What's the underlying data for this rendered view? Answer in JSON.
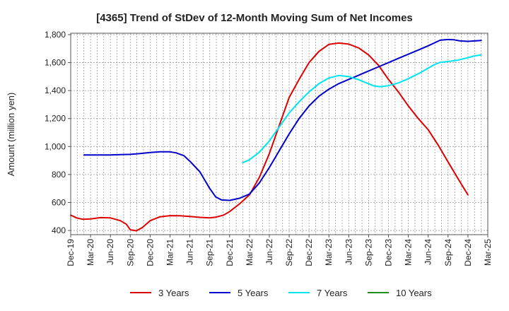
{
  "chart_data": {
    "type": "line",
    "title": "[4365]  Trend of StDev of 12-Month Moving Sum of Net Incomes",
    "xlabel": "",
    "ylabel": "Amount (million yen)",
    "ylim": [
      370,
      1810
    ],
    "yticks": [
      400,
      600,
      800,
      1000,
      1200,
      1400,
      1600,
      1800
    ],
    "ytick_labels": [
      "400",
      "600",
      "800",
      "1,000",
      "1,200",
      "1,400",
      "1,600",
      "1,800"
    ],
    "x_categories": [
      "Dec-19",
      "Mar-20",
      "Jun-20",
      "Sep-20",
      "Dec-20",
      "Mar-21",
      "Jun-21",
      "Sep-21",
      "Dec-21",
      "Mar-22",
      "Jun-22",
      "Sep-22",
      "Dec-22",
      "Mar-23",
      "Jun-23",
      "Sep-23",
      "Dec-23",
      "Mar-24",
      "Jun-24",
      "Sep-24",
      "Dec-24",
      "Mar-25"
    ],
    "grid": true,
    "legend_position": "bottom",
    "series": [
      {
        "name": "3 Years",
        "color": "#dd0000",
        "points": [
          [
            0,
            510
          ],
          [
            0.3,
            490
          ],
          [
            0.6,
            480
          ],
          [
            1.0,
            482
          ],
          [
            1.5,
            492
          ],
          [
            2.0,
            490
          ],
          [
            2.5,
            470
          ],
          [
            2.8,
            445
          ],
          [
            3.0,
            405
          ],
          [
            3.3,
            398
          ],
          [
            3.6,
            420
          ],
          [
            4.0,
            470
          ],
          [
            4.5,
            498
          ],
          [
            5.0,
            506
          ],
          [
            5.5,
            505
          ],
          [
            6.0,
            500
          ],
          [
            6.5,
            494
          ],
          [
            7.0,
            490
          ],
          [
            7.3,
            495
          ],
          [
            7.7,
            510
          ],
          [
            8.0,
            535
          ],
          [
            8.5,
            590
          ],
          [
            9.0,
            655
          ],
          [
            9.5,
            780
          ],
          [
            10.0,
            950
          ],
          [
            10.5,
            1150
          ],
          [
            11.0,
            1350
          ],
          [
            11.5,
            1480
          ],
          [
            12.0,
            1600
          ],
          [
            12.5,
            1680
          ],
          [
            13.0,
            1730
          ],
          [
            13.5,
            1740
          ],
          [
            14.0,
            1732
          ],
          [
            14.5,
            1705
          ],
          [
            15.0,
            1655
          ],
          [
            15.5,
            1580
          ],
          [
            16.0,
            1480
          ],
          [
            16.5,
            1390
          ],
          [
            17.0,
            1290
          ],
          [
            17.5,
            1200
          ],
          [
            18.0,
            1120
          ],
          [
            18.5,
            1010
          ],
          [
            19.0,
            890
          ],
          [
            19.5,
            770
          ],
          [
            20.0,
            655
          ]
        ]
      },
      {
        "name": "5 Years",
        "color": "#0000cc",
        "points": [
          [
            0.67,
            940
          ],
          [
            1.0,
            940
          ],
          [
            1.5,
            940
          ],
          [
            2.0,
            940
          ],
          [
            2.5,
            942
          ],
          [
            3.0,
            944
          ],
          [
            3.5,
            950
          ],
          [
            4.0,
            957
          ],
          [
            4.5,
            962
          ],
          [
            5.0,
            962
          ],
          [
            5.3,
            955
          ],
          [
            5.7,
            935
          ],
          [
            6.0,
            895
          ],
          [
            6.5,
            820
          ],
          [
            7.0,
            700
          ],
          [
            7.3,
            640
          ],
          [
            7.6,
            618
          ],
          [
            8.0,
            615
          ],
          [
            8.5,
            630
          ],
          [
            9.0,
            660
          ],
          [
            9.5,
            740
          ],
          [
            10.0,
            850
          ],
          [
            10.5,
            970
          ],
          [
            11.0,
            1090
          ],
          [
            11.5,
            1200
          ],
          [
            12.0,
            1290
          ],
          [
            12.5,
            1360
          ],
          [
            13.0,
            1410
          ],
          [
            13.5,
            1450
          ],
          [
            14.0,
            1480
          ],
          [
            14.5,
            1510
          ],
          [
            15.0,
            1540
          ],
          [
            15.5,
            1570
          ],
          [
            16.0,
            1600
          ],
          [
            16.5,
            1630
          ],
          [
            17.0,
            1660
          ],
          [
            17.5,
            1690
          ],
          [
            18.0,
            1720
          ],
          [
            18.3,
            1740
          ],
          [
            18.6,
            1760
          ],
          [
            19.0,
            1765
          ],
          [
            19.3,
            1763
          ],
          [
            19.6,
            1755
          ],
          [
            20.0,
            1752
          ],
          [
            20.33,
            1755
          ],
          [
            20.67,
            1758
          ]
        ]
      },
      {
        "name": "7 Years",
        "color": "#00e5ee",
        "points": [
          [
            8.67,
            885
          ],
          [
            9.0,
            905
          ],
          [
            9.5,
            960
          ],
          [
            10.0,
            1040
          ],
          [
            10.5,
            1140
          ],
          [
            11.0,
            1240
          ],
          [
            11.5,
            1320
          ],
          [
            12.0,
            1390
          ],
          [
            12.5,
            1450
          ],
          [
            13.0,
            1490
          ],
          [
            13.5,
            1508
          ],
          [
            14.0,
            1500
          ],
          [
            14.5,
            1478
          ],
          [
            15.0,
            1448
          ],
          [
            15.3,
            1432
          ],
          [
            15.6,
            1428
          ],
          [
            16.0,
            1435
          ],
          [
            16.5,
            1455
          ],
          [
            17.0,
            1485
          ],
          [
            17.5,
            1520
          ],
          [
            18.0,
            1560
          ],
          [
            18.3,
            1585
          ],
          [
            18.6,
            1602
          ],
          [
            19.0,
            1608
          ],
          [
            19.5,
            1618
          ],
          [
            20.0,
            1635
          ],
          [
            20.33,
            1648
          ],
          [
            20.67,
            1655
          ]
        ]
      },
      {
        "name": "10 Years",
        "color": "#228b22",
        "points": []
      }
    ]
  }
}
